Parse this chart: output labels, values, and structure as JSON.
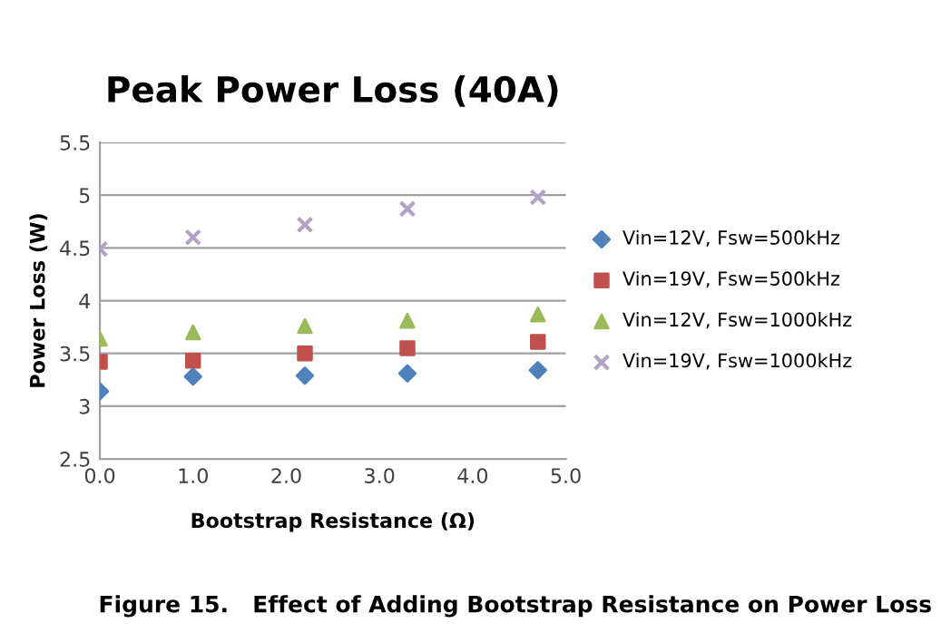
{
  "chart_data": {
    "type": "scatter",
    "title": "Peak Power Loss (40A)",
    "xlabel": "Bootstrap Resistance (Ω)",
    "ylabel": "Power Loss (W)",
    "annotations": [
      "Figure 15.   Effect of Adding Bootstrap Resistance on Power Loss"
    ],
    "x": [
      0,
      1.0,
      2.2,
      3.3,
      4.7
    ],
    "series": [
      {
        "name": "Vin=12V, Fsw=500kHz",
        "color": "#4f81bd",
        "marker": "diamond",
        "values": [
          3.14,
          3.28,
          3.29,
          3.31,
          3.34
        ]
      },
      {
        "name": "Vin=19V, Fsw=500kHz",
        "color": "#c0504d",
        "marker": "square",
        "values": [
          3.42,
          3.43,
          3.5,
          3.55,
          3.61
        ]
      },
      {
        "name": "Vin=12V, Fsw=1000kHz",
        "color": "#9bbb59",
        "marker": "triangle",
        "values": [
          3.64,
          3.7,
          3.76,
          3.81,
          3.87
        ]
      },
      {
        "name": "Vin=19V, Fsw=1000kHz",
        "color": "#b3a2c7",
        "marker": "cross",
        "values": [
          4.49,
          4.6,
          4.72,
          4.87,
          4.98
        ]
      }
    ],
    "xlim": [
      0,
      5
    ],
    "xticks": [
      {
        "value": 0,
        "label": "0.0"
      },
      {
        "value": 1,
        "label": "1.0"
      },
      {
        "value": 2,
        "label": "2.0"
      },
      {
        "value": 3,
        "label": "3.0"
      },
      {
        "value": 4,
        "label": "4.0"
      },
      {
        "value": 5,
        "label": "5.0"
      }
    ],
    "ylim": [
      2.5,
      5.5
    ],
    "yticks": [
      2.5,
      3,
      3.5,
      4,
      4.5,
      5,
      5.5
    ],
    "grid": "y",
    "legend": "right"
  }
}
